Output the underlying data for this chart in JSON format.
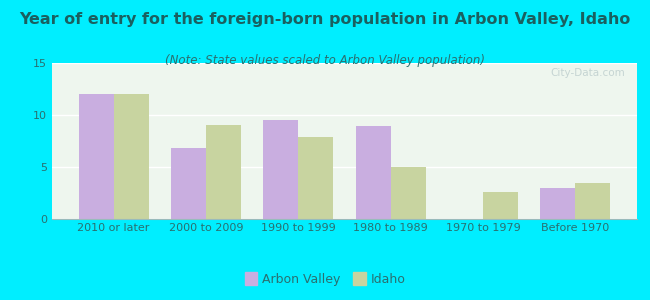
{
  "title": "Year of entry for the foreign-born population in Arbon Valley, Idaho",
  "subtitle": "(Note: State values scaled to Arbon Valley population)",
  "categories": [
    "2010 or later",
    "2000 to 2009",
    "1990 to 1999",
    "1980 to 1989",
    "1970 to 1979",
    "Before 1970"
  ],
  "arbon_valley": [
    12,
    6.8,
    9.5,
    8.9,
    0,
    3.0
  ],
  "idaho": [
    12,
    9.0,
    7.9,
    5.0,
    2.6,
    3.5
  ],
  "arbon_color": "#c9aee0",
  "idaho_color": "#c8d4a0",
  "background_outer": "#00eeff",
  "background_inner_top": "#f5faf0",
  "background_inner_bottom": "#e8f4e8",
  "title_color": "#1a6060",
  "subtitle_color": "#2a7070",
  "tick_color": "#2a7070",
  "ylim": [
    0,
    15
  ],
  "yticks": [
    0,
    5,
    10,
    15
  ],
  "bar_width": 0.38,
  "legend_labels": [
    "Arbon Valley",
    "Idaho"
  ],
  "title_fontsize": 11.5,
  "subtitle_fontsize": 8.5,
  "tick_fontsize": 8,
  "watermark": "City-Data.com"
}
